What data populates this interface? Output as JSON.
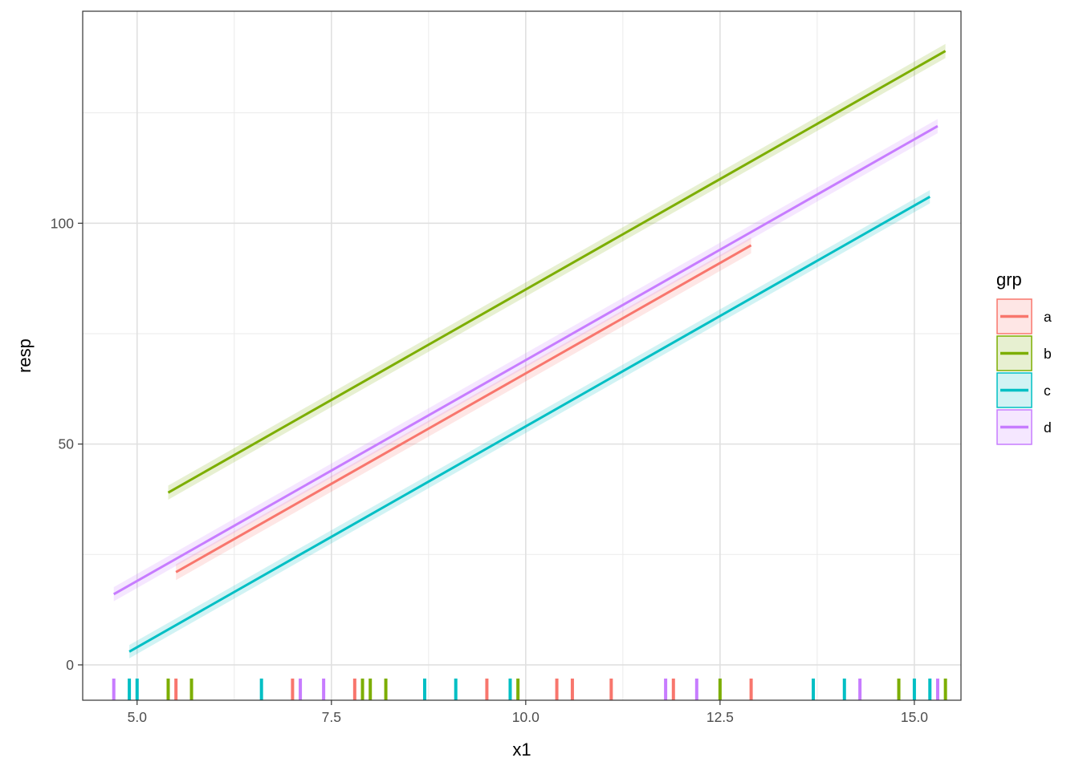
{
  "chart_data": {
    "type": "line",
    "xlabel": "x1",
    "ylabel": "resp",
    "xlim": [
      4.3,
      15.6
    ],
    "ylim": [
      -8,
      148
    ],
    "x_ticks": [
      {
        "value": 5.0,
        "label": "5.0"
      },
      {
        "value": 7.5,
        "label": "7.5"
      },
      {
        "value": 10.0,
        "label": "10.0"
      },
      {
        "value": 12.5,
        "label": "12.5"
      },
      {
        "value": 15.0,
        "label": "15.0"
      }
    ],
    "y_ticks": [
      {
        "value": 0,
        "label": "0"
      },
      {
        "value": 50,
        "label": "50"
      },
      {
        "value": 100,
        "label": "100"
      }
    ],
    "grid": true,
    "legend": {
      "title": "grp",
      "position": "right"
    },
    "series": [
      {
        "name": "a",
        "color": "#F8766D",
        "x": [
          5.5,
          12.9
        ],
        "y": [
          21,
          95
        ],
        "band": 1.8,
        "rug": [
          5.5,
          7.0,
          7.8,
          9.5,
          10.4,
          10.6,
          11.1,
          11.9,
          12.9
        ]
      },
      {
        "name": "b",
        "color": "#7CAE00",
        "x": [
          5.4,
          15.4
        ],
        "y": [
          39,
          139
        ],
        "band": 1.6,
        "rug": [
          5.4,
          5.7,
          7.9,
          8.0,
          8.2,
          9.9,
          12.5,
          14.8,
          15.4
        ]
      },
      {
        "name": "c",
        "color": "#00BFC4",
        "x": [
          4.9,
          15.2
        ],
        "y": [
          3,
          106
        ],
        "band": 1.5,
        "rug": [
          4.9,
          5.0,
          6.6,
          8.7,
          9.1,
          9.8,
          13.7,
          14.1,
          15.0,
          15.2
        ]
      },
      {
        "name": "d",
        "color": "#C77CFF",
        "x": [
          4.7,
          15.3
        ],
        "y": [
          16,
          122
        ],
        "band": 1.6,
        "rug": [
          4.7,
          7.1,
          7.4,
          11.8,
          12.2,
          14.3,
          15.3
        ]
      }
    ]
  }
}
